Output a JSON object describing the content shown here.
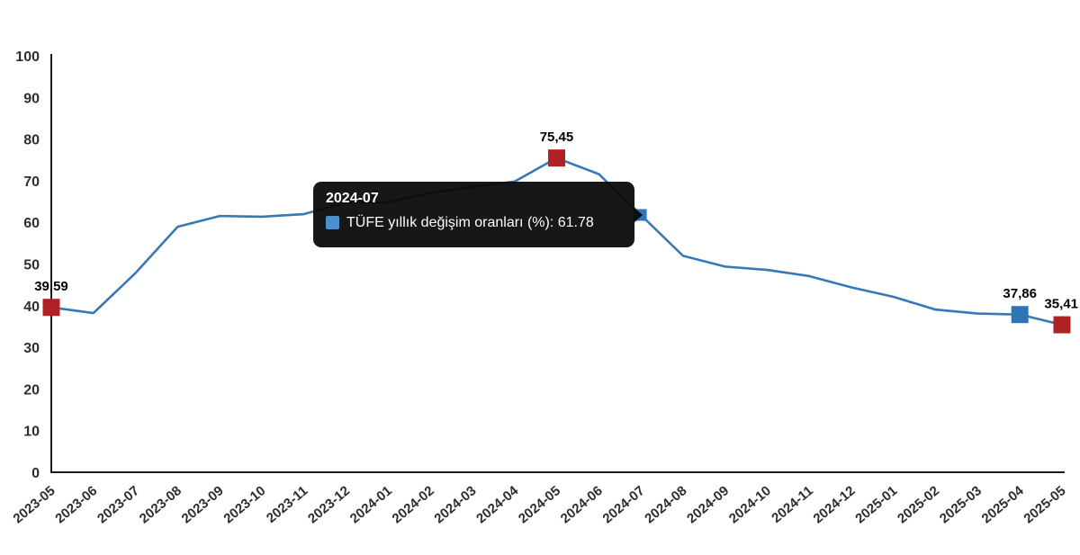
{
  "chart_data": {
    "type": "line",
    "title": "",
    "xlabel": "",
    "ylabel": "",
    "series_name": "TÜFE yıllık değişim oranları (%)",
    "categories": [
      "2023-05",
      "2023-06",
      "2023-07",
      "2023-08",
      "2023-09",
      "2023-10",
      "2023-11",
      "2023-12",
      "2024-01",
      "2024-02",
      "2024-03",
      "2024-04",
      "2024-05",
      "2024-06",
      "2024-07",
      "2024-08",
      "2024-09",
      "2024-10",
      "2024-11",
      "2024-12",
      "2025-01",
      "2025-02",
      "2025-03",
      "2025-04",
      "2025-05"
    ],
    "values": [
      39.59,
      38.21,
      47.83,
      58.94,
      61.53,
      61.36,
      61.98,
      64.77,
      64.86,
      67.07,
      68.5,
      69.8,
      75.45,
      71.6,
      61.78,
      51.97,
      49.38,
      48.58,
      47.09,
      44.38,
      42.12,
      39.05,
      38.1,
      37.86,
      35.41
    ],
    "ylim": [
      0,
      100
    ],
    "yticks": [
      0,
      10,
      20,
      30,
      40,
      50,
      60,
      70,
      80,
      90,
      100
    ],
    "grid": false,
    "legend_position": "none",
    "line_color": "#3878b4",
    "axis_color": "#1c1c1c",
    "tick_label_color": "#2e2e2e",
    "highlight_points": [
      {
        "category": "2023-05",
        "index": 0,
        "label": "39,59",
        "marker_color": "#b02126",
        "marker_size": 19
      },
      {
        "category": "2024-05",
        "index": 12,
        "label": "75,45",
        "marker_color": "#b02126",
        "marker_size": 19
      },
      {
        "category": "2024-07",
        "index": 14,
        "label": "",
        "marker_color": "#2e75b6",
        "marker_size": 13
      },
      {
        "category": "2025-04",
        "index": 23,
        "label": "37,86",
        "marker_color": "#2e75b6",
        "marker_size": 19
      },
      {
        "category": "2025-05",
        "index": 24,
        "label": "35,41",
        "marker_color": "#b02126",
        "marker_size": 19
      }
    ]
  },
  "tooltip": {
    "title": "2024-07",
    "text": "TÜFE yıllık değişim oranları (%): 61.78",
    "value": "61.78",
    "swatch_color": "#4a90cd",
    "bg_color": "#080808",
    "text_color": "#ffffff"
  }
}
